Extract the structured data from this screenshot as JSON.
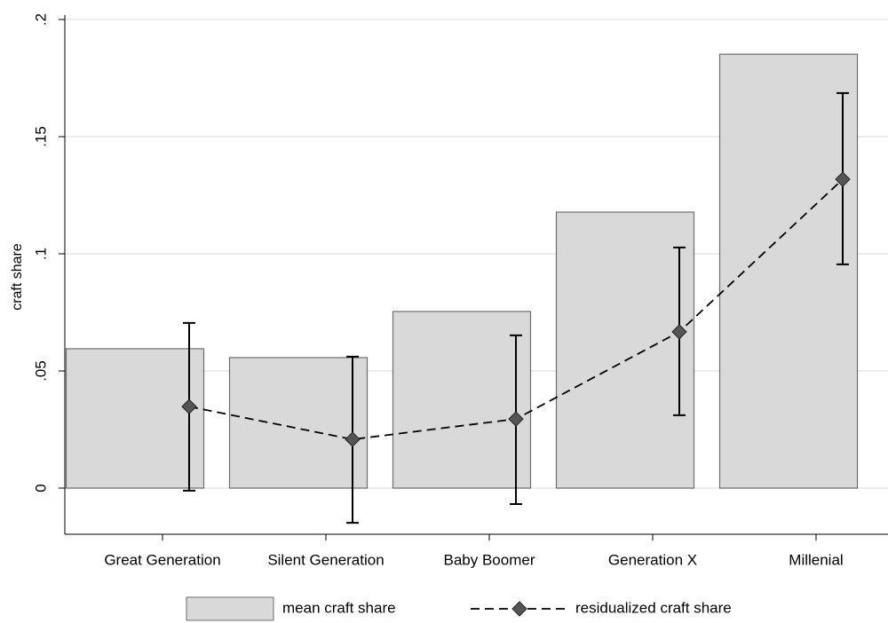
{
  "chart_data": {
    "type": "bar",
    "y_label": "craft share",
    "categories": [
      "Great Generation",
      "Silent Generation",
      "Baby Boomer",
      "Generation X",
      "Millenial"
    ],
    "series": [
      {
        "name": "mean craft share",
        "type": "bar",
        "color": "#d9d9d9",
        "values": [
          0.0595,
          0.0557,
          0.0754,
          0.1178,
          0.1852
        ]
      },
      {
        "name": "residualized craft share",
        "type": "line",
        "color": "#555555",
        "values": [
          0.0348,
          0.0208,
          0.0295,
          0.0667,
          0.1318
        ],
        "ci_low": [
          -0.0011,
          -0.0148,
          -0.0068,
          0.0311,
          0.0955
        ],
        "ci_high": [
          0.0705,
          0.0561,
          0.0652,
          0.1027,
          0.1686
        ]
      }
    ],
    "ylim": [
      -0.0197,
      0.2
    ],
    "yticks": [
      0,
      {
        "value": 0.05,
        "label": ".05"
      },
      {
        "value": 0.1,
        "label": ".1"
      },
      {
        "value": 0.15,
        "label": ".15"
      },
      {
        "value": 0.2,
        "label": ".2"
      }
    ],
    "grid": true,
    "legend": "bottom"
  }
}
